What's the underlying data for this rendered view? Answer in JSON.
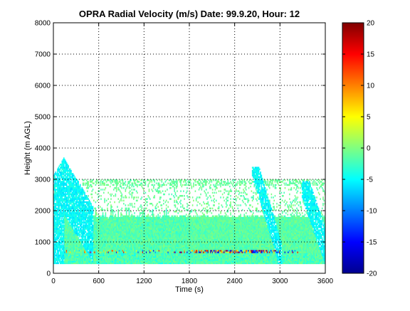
{
  "chart_data": {
    "type": "heatmap",
    "title": "OPRA Radial Velocity (m/s)  Date: 99.9.20, Hour: 12",
    "xlabel": "Time (s)",
    "ylabel": "Height (m AGL)",
    "xlim": [
      0,
      3600
    ],
    "ylim": [
      0,
      8000
    ],
    "x_ticks": [
      "0",
      "600",
      "1200",
      "1800",
      "2400",
      "3000",
      "3600"
    ],
    "y_ticks": [
      "0",
      "1000",
      "2000",
      "3000",
      "4000",
      "5000",
      "6000",
      "7000",
      "8000"
    ],
    "grid": "dotted",
    "colorbar": {
      "colormap": "jet",
      "range": [
        -20,
        20
      ],
      "ticks": [
        "20",
        "15",
        "10",
        "5",
        "0",
        "-5",
        "-10",
        "-15",
        "-20"
      ]
    },
    "regions": [
      {
        "description": "background greenish-cyan layer",
        "x": [
          0,
          3600
        ],
        "height": [
          300,
          1800
        ],
        "velocity": -1.5
      },
      {
        "description": "broken upper layer",
        "x": [
          400,
          3600
        ],
        "height": [
          1800,
          3000
        ],
        "velocity": -1
      },
      {
        "description": "strong reflective band near 700 m",
        "x": [
          100,
          3300
        ],
        "height": [
          650,
          750
        ],
        "velocity_range": [
          -18,
          18
        ]
      },
      {
        "description": "early descending plume",
        "x": [
          0,
          500
        ],
        "height": [
          300,
          3750
        ],
        "velocity": -5
      },
      {
        "description": "late descending plume",
        "x": [
          2650,
          3000
        ],
        "height": [
          300,
          3400
        ],
        "velocity": -5
      },
      {
        "description": "end plume",
        "x": [
          3300,
          3600
        ],
        "height": [
          300,
          2900
        ],
        "velocity": -6
      }
    ]
  }
}
